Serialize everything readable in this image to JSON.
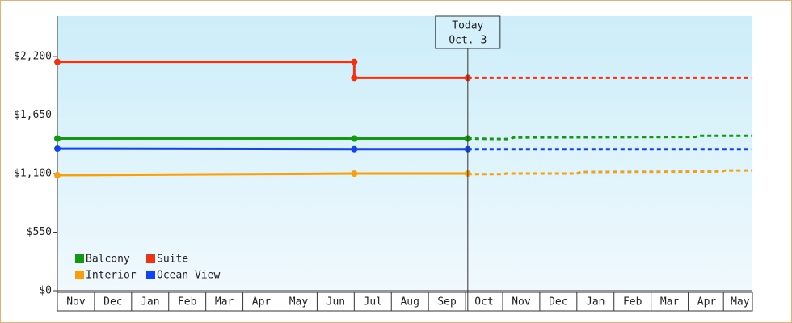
{
  "chart_data": {
    "type": "line",
    "annotation": [
      "Today",
      "Oct. 3"
    ],
    "annotation_x": 11.06,
    "xlim": [
      0,
      18.73
    ],
    "xticks": [
      {
        "value": 0.5,
        "label": "Nov"
      },
      {
        "value": 1.5,
        "label": "Dec"
      },
      {
        "value": 2.5,
        "label": "Jan"
      },
      {
        "value": 3.5,
        "label": "Feb"
      },
      {
        "value": 4.5,
        "label": "Mar"
      },
      {
        "value": 5.5,
        "label": "Apr"
      },
      {
        "value": 6.5,
        "label": "May"
      },
      {
        "value": 7.5,
        "label": "Jun"
      },
      {
        "value": 8.5,
        "label": "Jul"
      },
      {
        "value": 9.5,
        "label": "Aug"
      },
      {
        "value": 10.5,
        "label": "Sep"
      },
      {
        "value": 11.5,
        "label": "Oct"
      },
      {
        "value": 12.5,
        "label": "Nov"
      },
      {
        "value": 13.5,
        "label": "Dec"
      },
      {
        "value": 14.5,
        "label": "Jan"
      },
      {
        "value": 15.5,
        "label": "Feb"
      },
      {
        "value": 16.5,
        "label": "Mar"
      },
      {
        "value": 17.5,
        "label": "Apr"
      },
      {
        "value": 18.4,
        "label": "May"
      }
    ],
    "ylim": [
      0,
      2580
    ],
    "yticks": [
      {
        "value": 0,
        "label": "$0"
      },
      {
        "value": 550,
        "label": "$550"
      },
      {
        "value": 1100,
        "label": "$1,100"
      },
      {
        "value": 1650,
        "label": "$1,650"
      },
      {
        "value": 2200,
        "label": "$2,200"
      }
    ],
    "series": [
      {
        "name": "Balcony",
        "color": "#119911",
        "x": [
          0,
          8,
          11.06
        ],
        "values": [
          1430,
          1430,
          1430
        ],
        "forecast": {
          "x": [
            11.06,
            12.2,
            12.3,
            17.2,
            17.3,
            18.73
          ],
          "values": [
            1430,
            1425,
            1440,
            1445,
            1455,
            1455
          ]
        }
      },
      {
        "name": "Suite",
        "color": "#ee3311",
        "x": [
          0,
          8,
          8,
          11.06
        ],
        "values": [
          2150,
          2150,
          2000,
          2000
        ],
        "forecast": {
          "x": [
            11.06,
            18.73
          ],
          "values": [
            2000,
            2000
          ]
        }
      },
      {
        "name": "Interior",
        "color": "#f5a011",
        "x": [
          0,
          8,
          11.06
        ],
        "values": [
          1085,
          1100,
          1100
        ],
        "forecast": {
          "x": [
            11.06,
            12.0,
            12.1,
            14.0,
            14.1,
            17.9,
            18.0,
            18.73
          ],
          "values": [
            1095,
            1095,
            1100,
            1100,
            1115,
            1120,
            1130,
            1130
          ]
        }
      },
      {
        "name": "Ocean View",
        "color": "#1144ee",
        "x": [
          0,
          8,
          11.06
        ],
        "values": [
          1335,
          1330,
          1330
        ],
        "forecast": {
          "x": [
            11.06,
            18.73
          ],
          "values": [
            1330,
            1330
          ]
        }
      }
    ]
  }
}
